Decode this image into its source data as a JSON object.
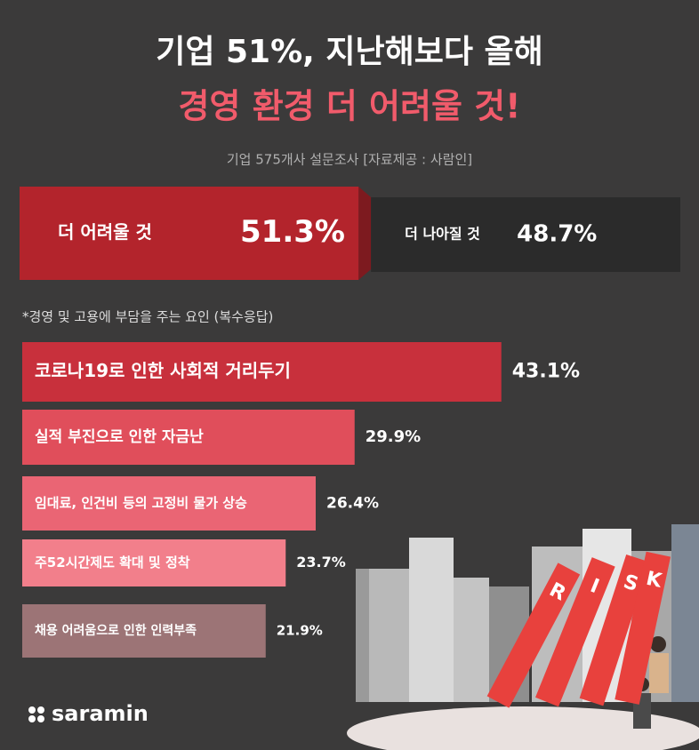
{
  "header": {
    "title_line1": "기업 51%, 지난해보다 올해",
    "title_line2": "경영 환경 더 어려울 것!",
    "subtitle": "기업 575개사 설문조사 [자료제공 : 사람인]"
  },
  "logo": "saramin",
  "illustration": {
    "letters": [
      "R",
      "I",
      "S",
      "K"
    ]
  },
  "chart_data": [
    {
      "type": "split-bar",
      "categories": [
        "더 어려울 것",
        "더 나아질 것"
      ],
      "values": [
        51.3,
        48.7
      ],
      "value_labels": [
        "51.3%",
        "48.7%"
      ],
      "colors": [
        "#b3242c",
        "#2b2b2b"
      ]
    },
    {
      "type": "bar",
      "orientation": "horizontal",
      "title": "*경영 및 고용에 부담을 주는 요인 (복수응답)",
      "categories": [
        "코로나19로 인한 사회적 거리두기",
        "실적 부진으로 인한 자금난",
        "임대료, 인건비 등의 고정비 물가 상승",
        "주52시간제도 확대 및 정착",
        "채용 어려움으로 인한 인력부족"
      ],
      "values": [
        43.1,
        29.9,
        26.4,
        23.7,
        21.9
      ],
      "value_labels": [
        "43.1%",
        "29.9%",
        "26.4%",
        "23.7%",
        "21.9%"
      ],
      "colors": [
        "#c8303c",
        "#e04e5b",
        "#ea6574",
        "#f27f8b",
        "#9c7476"
      ]
    }
  ]
}
